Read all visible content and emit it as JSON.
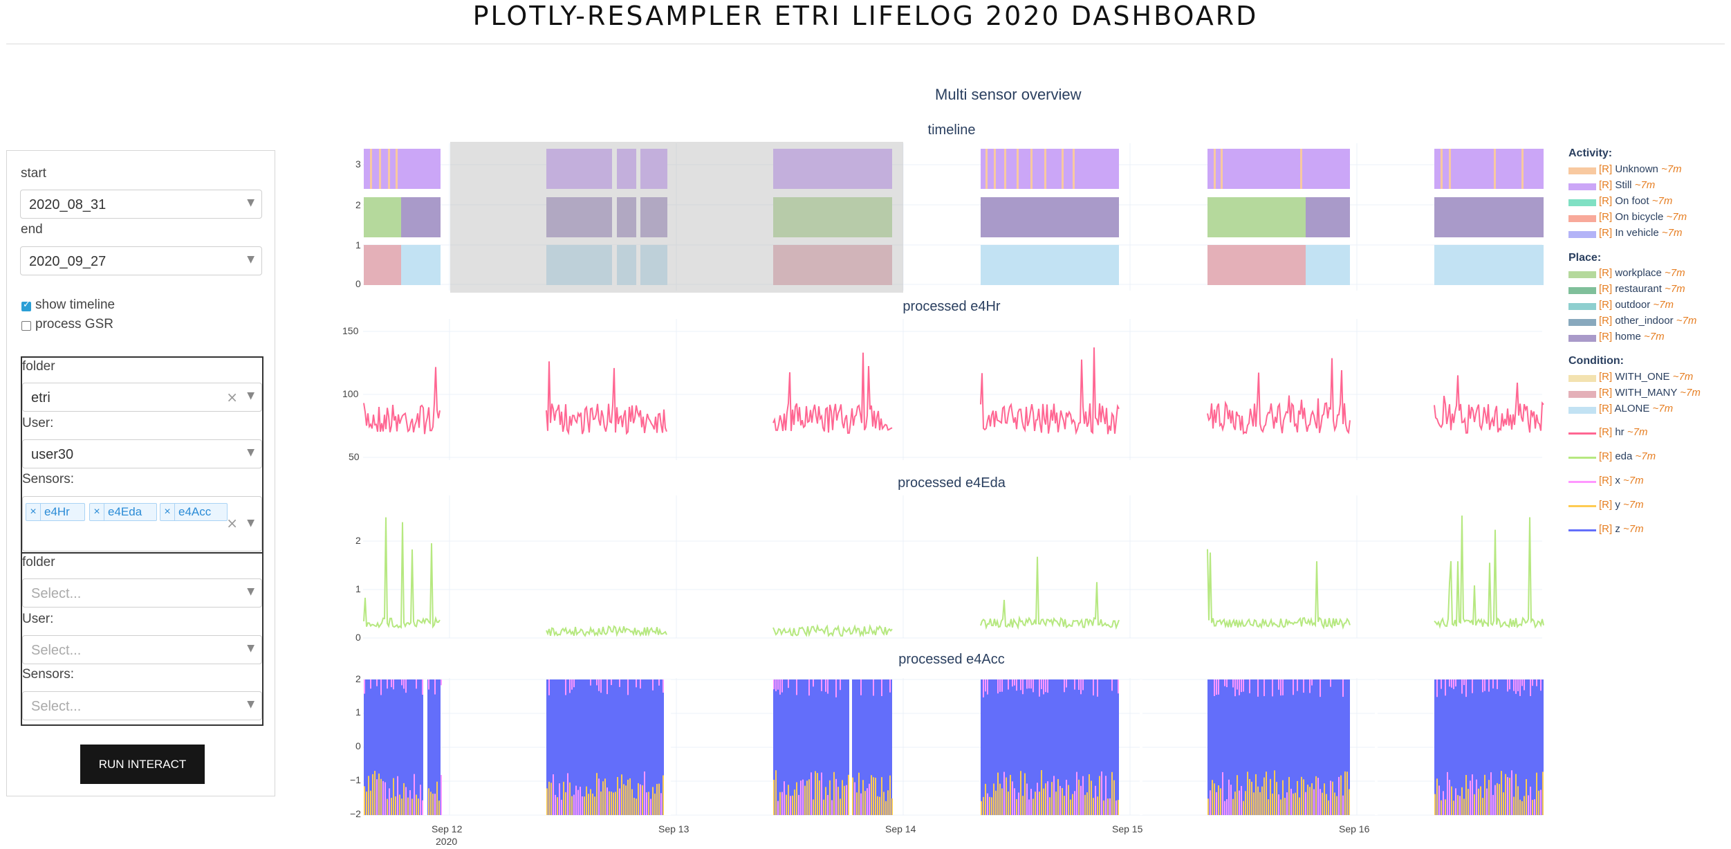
{
  "header": {
    "title": "PLOTLY-RESAMPLER ETRI LIFELOG 2020 DASHBOARD"
  },
  "sidebar": {
    "start_label": "start",
    "start_value": "2020_08_31",
    "end_label": "end",
    "end_value": "2020_09_27",
    "show_timeline_label": "show timeline",
    "show_timeline_checked": true,
    "process_gsr_label": "process GSR",
    "process_gsr_checked": false,
    "group1": {
      "folder_label": "folder",
      "folder_value": "etri",
      "user_label": "User:",
      "user_value": "user30",
      "sensors_label": "Sensors:",
      "sensors": [
        "e4Hr",
        "e4Eda",
        "e4Acc"
      ]
    },
    "group2": {
      "folder_label": "folder",
      "folder_placeholder": "Select...",
      "user_label": "User:",
      "user_placeholder": "Select...",
      "sensors_label": "Sensors:",
      "sensors_placeholder": "Select..."
    },
    "run_button": "RUN INTERACT"
  },
  "figure": {
    "title": "Multi sensor overview",
    "subplot_titles": [
      "timeline",
      "processed e4Hr",
      "processed e4Eda",
      "processed e4Acc"
    ],
    "x_ticks": [
      "Sep 12",
      "Sep 13",
      "Sep 14",
      "Sep 15",
      "Sep 16"
    ],
    "x_year": "2020",
    "timeline_yticks": [
      "3",
      "2",
      "1",
      "0"
    ],
    "hr_yticks": [
      "150",
      "100",
      "50"
    ],
    "eda_yticks": [
      "2",
      "1",
      "0"
    ],
    "acc_yticks": [
      "2",
      "1",
      "0",
      "−1",
      "−2"
    ]
  },
  "legend": {
    "activity_title": "Activity:",
    "activity": [
      {
        "name": "Unknown",
        "color": "#f8c9a0"
      },
      {
        "name": "Still",
        "color": "#cba6f7"
      },
      {
        "name": "On foot",
        "color": "#7fe0c3"
      },
      {
        "name": "On bicycle",
        "color": "#f8a99a"
      },
      {
        "name": "In vehicle",
        "color": "#b3b3f7"
      }
    ],
    "place_title": "Place:",
    "place": [
      {
        "name": "workplace",
        "color": "#b5d99c"
      },
      {
        "name": "restaurant",
        "color": "#7fbf9a"
      },
      {
        "name": "outdoor",
        "color": "#8ecfcf"
      },
      {
        "name": "other_indoor",
        "color": "#88a8bd"
      },
      {
        "name": "home",
        "color": "#a99ac9"
      }
    ],
    "condition_title": "Condition:",
    "condition": [
      {
        "name": "WITH_ONE",
        "color": "#f3e2b0"
      },
      {
        "name": "WITH_MANY",
        "color": "#e4b0b8"
      },
      {
        "name": "ALONE",
        "color": "#c2e2f3"
      }
    ],
    "signals": [
      {
        "name": "hr",
        "color": "#ff6692"
      },
      {
        "name": "eda",
        "color": "#b6e880"
      },
      {
        "name": "x",
        "color": "#ff97ff"
      },
      {
        "name": "y",
        "color": "#fecb52"
      },
      {
        "name": "z",
        "color": "#636efa"
      }
    ],
    "prefix": "[R]",
    "suffix": "~7m"
  }
}
